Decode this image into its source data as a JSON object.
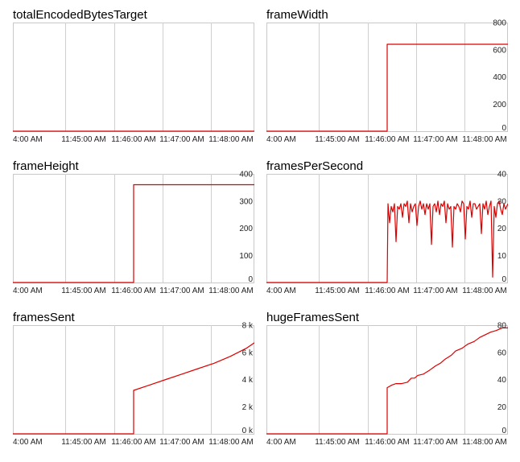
{
  "chart_data": [
    {
      "type": "line",
      "title": "totalEncodedBytesTarget",
      "x_tick_labels": [
        "4:00 AM",
        "11:45:00 AM",
        "11:46:00 AM",
        "11:47:00 AM",
        "11:48:00 AM"
      ],
      "y_tick_labels": [],
      "ylim": [
        0,
        1
      ],
      "series": [
        {
          "values": [
            [
              0,
              0
            ],
            [
              300,
              0
            ]
          ]
        }
      ],
      "color": "#dd0000",
      "grid": true
    },
    {
      "type": "line",
      "title": "frameWidth",
      "x_tick_labels": [
        "4:00 AM",
        "11:45:00 AM",
        "11:46:00 AM",
        "11:47:00 AM",
        "11:48:00 AM"
      ],
      "y_tick_labels": [
        "800",
        "600",
        "400",
        "200",
        "0"
      ],
      "y_ticks": [
        800,
        600,
        400,
        200,
        0
      ],
      "ylim": [
        0,
        800
      ],
      "series": [
        {
          "values": [
            [
              0,
              0
            ],
            [
              150,
              0
            ],
            [
              150,
              640
            ],
            [
              300,
              640
            ]
          ]
        }
      ],
      "color": "#dd0000",
      "grid": true
    },
    {
      "type": "line",
      "title": "frameHeight",
      "x_tick_labels": [
        "4:00 AM",
        "11:45:00 AM",
        "11:46:00 AM",
        "11:47:00 AM",
        "11:48:00 AM"
      ],
      "y_tick_labels": [
        "400",
        "300",
        "200",
        "100",
        "0"
      ],
      "y_ticks": [
        400,
        300,
        200,
        100,
        0
      ],
      "ylim": [
        0,
        400
      ],
      "series": [
        {
          "values": [
            [
              0,
              0
            ],
            [
              150,
              0
            ],
            [
              150,
              360
            ],
            [
              300,
              360
            ]
          ]
        }
      ],
      "color": "#dd0000",
      "grid": true
    },
    {
      "type": "line",
      "title": "framesPerSecond",
      "x_tick_labels": [
        "4:00 AM",
        "11:45:00 AM",
        "11:46:00 AM",
        "11:47:00 AM",
        "11:48:00 AM"
      ],
      "y_tick_labels": [
        "40",
        "30",
        "20",
        "10",
        "0"
      ],
      "y_ticks": [
        40,
        30,
        20,
        10,
        0
      ],
      "ylim": [
        0,
        40
      ],
      "series": [
        {
          "values": [
            [
              0,
              0
            ],
            [
              150,
              0
            ],
            [
              151,
              29
            ],
            [
              153,
              22
            ],
            [
              155,
              28
            ],
            [
              157,
              26
            ],
            [
              159,
              29
            ],
            [
              161,
              15
            ],
            [
              163,
              28
            ],
            [
              165,
              27
            ],
            [
              167,
              29
            ],
            [
              169,
              24
            ],
            [
              171,
              29
            ],
            [
              173,
              28
            ],
            [
              175,
              30
            ],
            [
              177,
              22
            ],
            [
              179,
              29
            ],
            [
              181,
              26
            ],
            [
              183,
              28
            ],
            [
              185,
              29
            ],
            [
              187,
              21
            ],
            [
              189,
              28
            ],
            [
              191,
              30
            ],
            [
              193,
              27
            ],
            [
              195,
              29
            ],
            [
              197,
              25
            ],
            [
              199,
              29
            ],
            [
              201,
              27
            ],
            [
              203,
              29
            ],
            [
              205,
              14
            ],
            [
              207,
              28
            ],
            [
              209,
              29
            ],
            [
              211,
              26
            ],
            [
              213,
              30
            ],
            [
              215,
              25
            ],
            [
              217,
              29
            ],
            [
              219,
              28
            ],
            [
              221,
              30
            ],
            [
              223,
              22
            ],
            [
              225,
              29
            ],
            [
              227,
              27
            ],
            [
              229,
              28
            ],
            [
              231,
              13
            ],
            [
              233,
              28
            ],
            [
              235,
              27
            ],
            [
              237,
              29
            ],
            [
              239,
              28
            ],
            [
              241,
              26
            ],
            [
              243,
              30
            ],
            [
              245,
              29
            ],
            [
              247,
              16
            ],
            [
              249,
              28
            ],
            [
              251,
              27
            ],
            [
              253,
              30
            ],
            [
              255,
              24
            ],
            [
              257,
              29
            ],
            [
              259,
              29
            ],
            [
              261,
              27
            ],
            [
              263,
              28
            ],
            [
              265,
              29
            ],
            [
              267,
              18
            ],
            [
              269,
              29
            ],
            [
              271,
              27
            ],
            [
              273,
              30
            ],
            [
              275,
              25
            ],
            [
              277,
              28
            ],
            [
              279,
              30
            ],
            [
              281,
              2
            ],
            [
              283,
              28
            ],
            [
              285,
              24
            ],
            [
              287,
              29
            ],
            [
              289,
              30
            ],
            [
              291,
              27
            ],
            [
              293,
              25
            ],
            [
              295,
              29
            ],
            [
              297,
              27
            ],
            [
              300,
              29
            ]
          ]
        }
      ],
      "color": "#dd0000",
      "grid": true
    },
    {
      "type": "line",
      "title": "framesSent",
      "x_tick_labels": [
        "4:00 AM",
        "11:45:00 AM",
        "11:46:00 AM",
        "11:47:00 AM",
        "11:48:00 AM"
      ],
      "y_tick_labels": [
        "8 k",
        "6 k",
        "4 k",
        "2 k",
        "0 k"
      ],
      "y_ticks": [
        8000,
        6000,
        4000,
        2000,
        0
      ],
      "ylim": [
        0,
        8000
      ],
      "series": [
        {
          "values": [
            [
              0,
              0
            ],
            [
              150,
              0
            ],
            [
              150,
              3200
            ],
            [
              170,
              3600
            ],
            [
              190,
              4000
            ],
            [
              210,
              4400
            ],
            [
              230,
              4800
            ],
            [
              250,
              5200
            ],
            [
              270,
              5700
            ],
            [
              290,
              6300
            ],
            [
              300,
              6700
            ]
          ]
        }
      ],
      "color": "#dd0000",
      "grid": true
    },
    {
      "type": "line",
      "title": "hugeFramesSent",
      "x_tick_labels": [
        "4:00 AM",
        "11:45:00 AM",
        "11:46:00 AM",
        "11:47:00 AM",
        "11:48:00 AM"
      ],
      "y_tick_labels": [
        "80",
        "60",
        "40",
        "20",
        "0"
      ],
      "y_ticks": [
        80,
        60,
        40,
        20,
        0
      ],
      "ylim": [
        0,
        80
      ],
      "series": [
        {
          "values": [
            [
              0,
              0
            ],
            [
              150,
              0
            ],
            [
              150,
              34
            ],
            [
              156,
              36
            ],
            [
              161,
              37
            ],
            [
              168,
              37
            ],
            [
              175,
              38
            ],
            [
              180,
              41
            ],
            [
              184,
              41
            ],
            [
              188,
              43
            ],
            [
              195,
              44
            ],
            [
              203,
              47
            ],
            [
              210,
              50
            ],
            [
              216,
              52
            ],
            [
              222,
              55
            ],
            [
              230,
              58
            ],
            [
              235,
              61
            ],
            [
              243,
              63
            ],
            [
              250,
              66
            ],
            [
              258,
              68
            ],
            [
              265,
              71
            ],
            [
              272,
              73
            ],
            [
              279,
              75
            ],
            [
              285,
              76
            ],
            [
              293,
              78
            ],
            [
              300,
              78
            ]
          ]
        }
      ],
      "color": "#dd0000",
      "grid": true
    }
  ]
}
